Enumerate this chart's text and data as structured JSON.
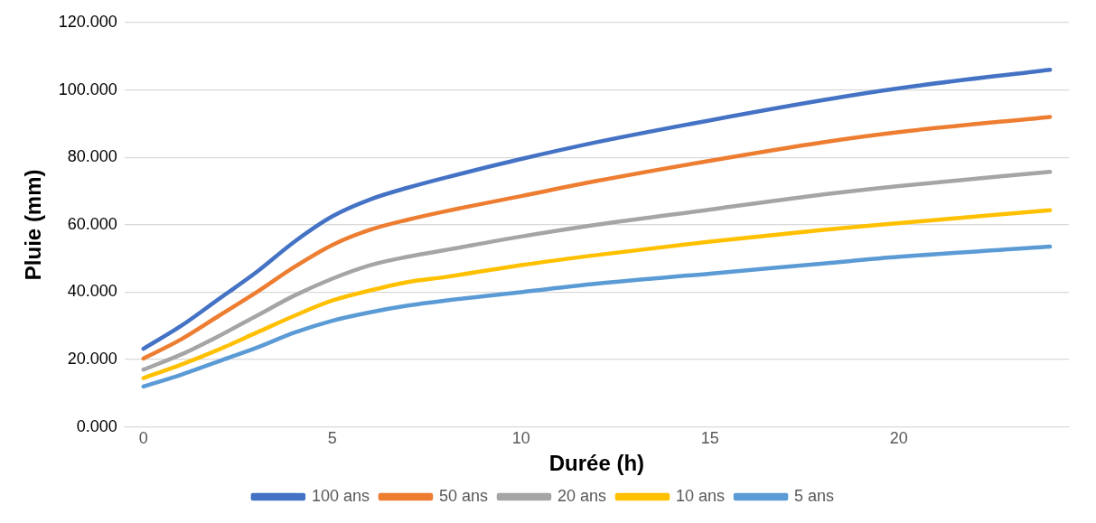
{
  "chart_data": {
    "type": "line",
    "xlabel": "Durée (h)",
    "ylabel": "Pluie (mm)",
    "x": [
      0,
      1,
      2,
      3,
      4,
      5,
      6,
      7,
      8,
      10,
      12,
      15,
      18,
      20,
      24
    ],
    "series": [
      {
        "name": "100 ans",
        "color": "#4472c4",
        "values": [
          23.2,
          30,
          38,
          46,
          55,
          62.5,
          67.5,
          71,
          74,
          79.5,
          84.5,
          91,
          97,
          100.5,
          106
        ]
      },
      {
        "name": "50 ans",
        "color": "#ed7d31",
        "values": [
          20.3,
          26,
          33,
          40,
          47.5,
          54,
          58.5,
          61.5,
          64,
          68.5,
          73,
          79,
          84.5,
          87.5,
          92
        ]
      },
      {
        "name": "20 ans",
        "color": "#a5a5a5",
        "values": [
          17,
          21.5,
          27,
          33,
          39,
          44,
          48,
          50.5,
          52.5,
          56.5,
          60,
          64.5,
          69,
          71.5,
          75.7
        ]
      },
      {
        "name": "10 ans",
        "color": "#ffc000",
        "values": [
          14.5,
          18.5,
          23,
          28,
          33,
          37.5,
          40.5,
          43,
          44.5,
          48,
          51,
          55,
          58.5,
          60.5,
          64.3
        ]
      },
      {
        "name": "5 ans",
        "color": "#5b9bd5",
        "values": [
          12,
          15.5,
          19.5,
          23.5,
          28,
          31.5,
          34,
          36,
          37.5,
          40,
          42.5,
          45.5,
          48.5,
          50.5,
          53.5
        ]
      }
    ],
    "xlim": [
      -0.5,
      24.5
    ],
    "xticks": [
      0,
      5,
      10,
      15,
      20
    ],
    "ylim": [
      0,
      120
    ],
    "yticks": [
      {
        "value": 0,
        "label": "0.000"
      },
      {
        "value": 20,
        "label": "20.000"
      },
      {
        "value": 40,
        "label": "40.000"
      },
      {
        "value": 60,
        "label": "60.000"
      },
      {
        "value": 80,
        "label": "80.000"
      },
      {
        "value": 100,
        "label": "100.000"
      },
      {
        "value": 120,
        "label": "120.000"
      }
    ],
    "grid": "y",
    "legend": "bottom",
    "marker": "none",
    "line_style": "solid"
  }
}
